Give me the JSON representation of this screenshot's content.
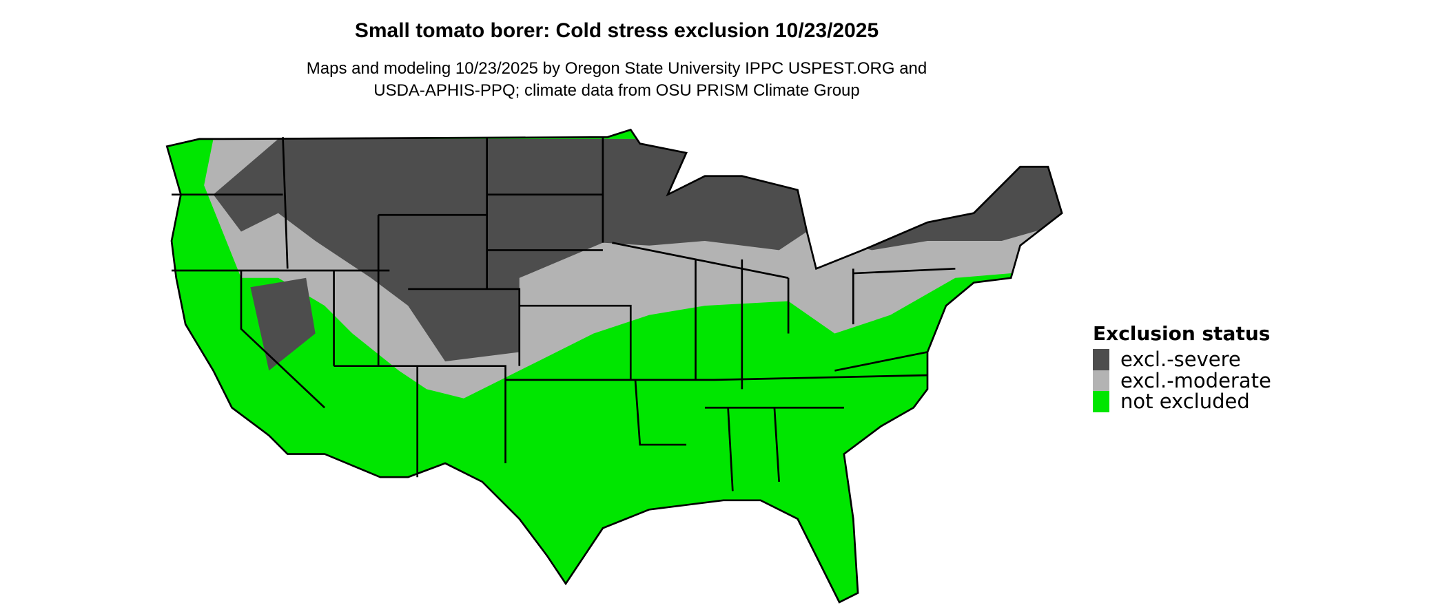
{
  "title": "Small tomato borer: Cold stress exclusion 10/23/2025",
  "subtitle_lines": [
    "Maps and modeling 10/23/2025 by Oregon State University IPPC USPEST.ORG and",
    "USDA-APHIS-PPQ; climate data from OSU PRISM Climate Group"
  ],
  "legend": {
    "title": "Exclusion status",
    "items": [
      {
        "label": "excl.-severe",
        "color": "#4d4d4d"
      },
      {
        "label": "excl.-moderate",
        "color": "#b3b3b3"
      },
      {
        "label": "not excluded",
        "color": "#00e600"
      }
    ]
  },
  "map": {
    "region": "Contiguous United States",
    "state_border_color": "#000000"
  }
}
